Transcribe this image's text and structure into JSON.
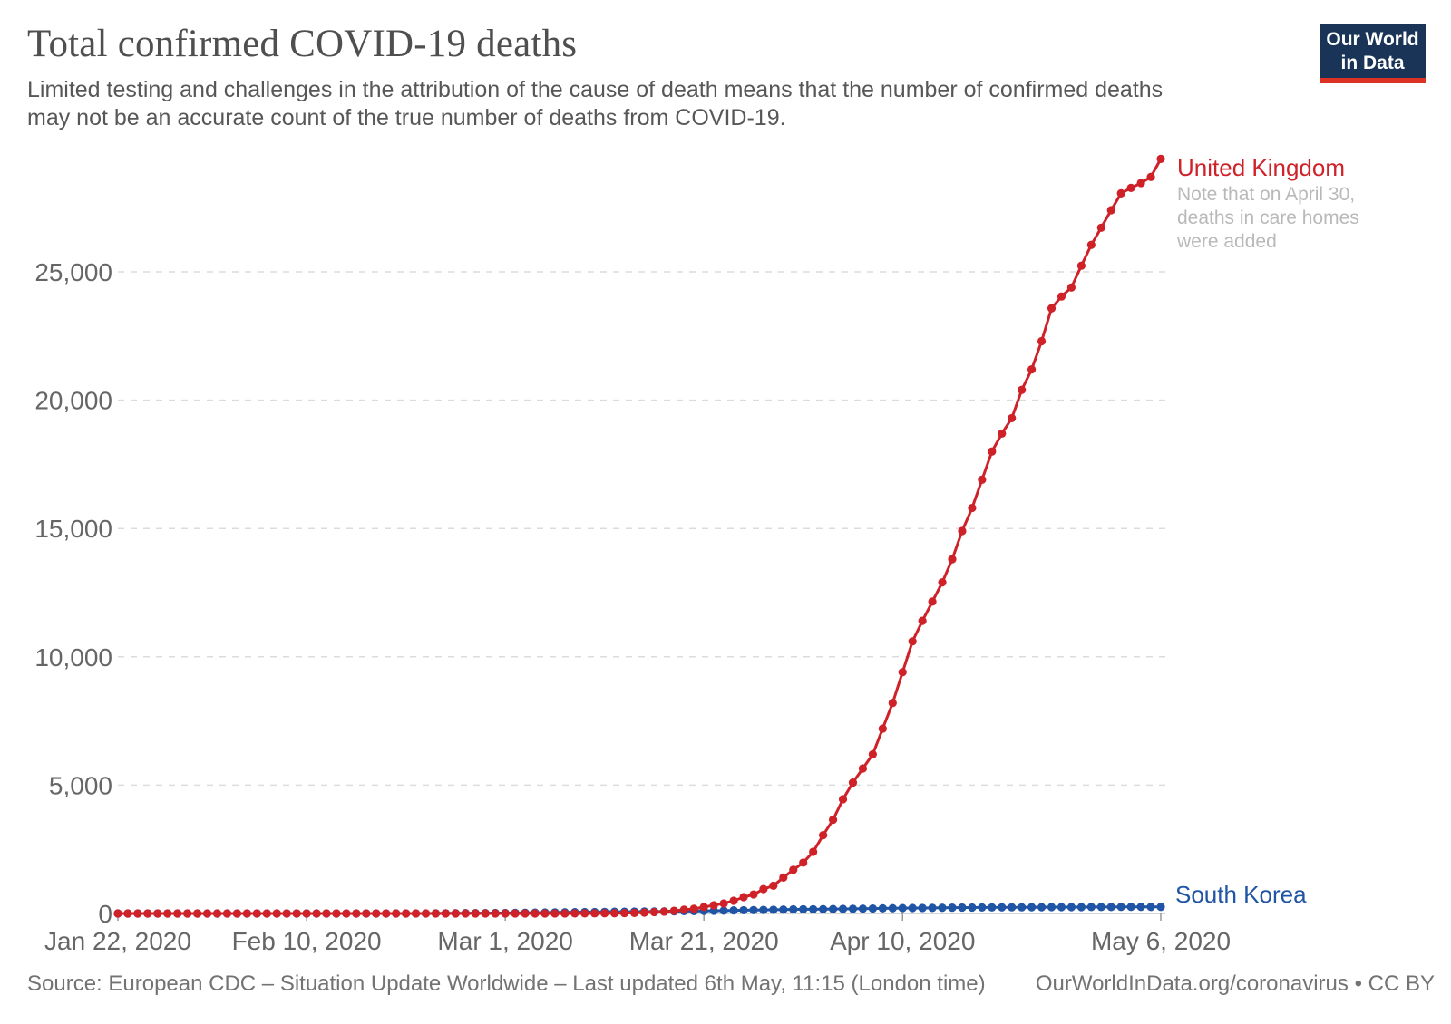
{
  "header": {
    "title": "Total confirmed COVID-19 deaths",
    "subtitle_line1": "Limited testing and challenges in the attribution of the cause of death means that the number of confirmed deaths",
    "subtitle_line2": "may not be an accurate count of the true number of deaths from COVID-19."
  },
  "logo": {
    "line1": "Our World",
    "line2": "in Data"
  },
  "chart_data": {
    "type": "line",
    "title": "Total confirmed COVID-19 deaths",
    "grid": "horizontal dashed gridlines",
    "legend_position": "labels at line ends (right side)",
    "x_axis": {
      "total_days": 105,
      "start_date": "Jan 22, 2020",
      "end_date": "May 6, 2020",
      "tick_labels": [
        "Jan 22, 2020",
        "Feb 10, 2020",
        "Mar 1, 2020",
        "Mar 21, 2020",
        "Apr 10, 2020",
        "May 6, 2020"
      ],
      "tick_days": [
        0,
        19,
        39,
        59,
        79,
        105
      ]
    },
    "y_axis": {
      "tick_values": [
        0,
        5000,
        10000,
        15000,
        20000,
        25000
      ],
      "tick_labels": [
        "0",
        "5,000",
        "10,000",
        "15,000",
        "20,000",
        "25,000"
      ],
      "range": [
        0,
        29500
      ]
    },
    "series": [
      {
        "name": "United Kingdom",
        "color": "#cf2128",
        "annotation_lines": [
          "Note that on April 30,",
          "deaths in care homes",
          "were added"
        ],
        "values": [
          0,
          0,
          0,
          0,
          0,
          0,
          0,
          0,
          0,
          0,
          0,
          0,
          0,
          0,
          0,
          0,
          0,
          0,
          0,
          0,
          0,
          0,
          0,
          0,
          0,
          0,
          0,
          0,
          0,
          0,
          0,
          0,
          0,
          0,
          0,
          0,
          0,
          0,
          0,
          0,
          0,
          0,
          0,
          1,
          2,
          2,
          3,
          4,
          6,
          8,
          10,
          15,
          21,
          35,
          55,
          72,
          104,
          145,
          180,
          250,
          320,
          390,
          495,
          635,
          740,
          950,
          1080,
          1400,
          1700,
          1980,
          2400,
          3050,
          3650,
          4450,
          5100,
          5650,
          6200,
          7200,
          8200,
          9400,
          10600,
          11400,
          12150,
          12900,
          13800,
          14900,
          15800,
          16900,
          18000,
          18700,
          19300,
          20400,
          21200,
          22300,
          23580,
          24040,
          24390,
          25240,
          26050,
          26720,
          27400,
          28060,
          28270,
          28460,
          28700,
          29400
        ]
      },
      {
        "name": "South Korea",
        "color": "#2054a5",
        "annotation_lines": [],
        "values": [
          0,
          0,
          0,
          0,
          0,
          0,
          0,
          0,
          0,
          0,
          0,
          0,
          0,
          0,
          0,
          0,
          0,
          0,
          0,
          0,
          0,
          0,
          0,
          0,
          0,
          0,
          0,
          0,
          0,
          1,
          2,
          2,
          5,
          7,
          8,
          12,
          13,
          13,
          17,
          18,
          22,
          28,
          32,
          35,
          42,
          44,
          50,
          53,
          54,
          60,
          66,
          67,
          72,
          75,
          75,
          81,
          84,
          91,
          94,
          102,
          104,
          111,
          120,
          126,
          131,
          139,
          144,
          152,
          158,
          162,
          165,
          169,
          174,
          177,
          183,
          186,
          192,
          200,
          204,
          208,
          211,
          214,
          217,
          222,
          225,
          229,
          230,
          234,
          236,
          238,
          240,
          240,
          243,
          244,
          246,
          246,
          247,
          248,
          250,
          252,
          252,
          254,
          255,
          255,
          255,
          256
        ]
      }
    ]
  },
  "footer": {
    "source": "Source: European CDC – Situation Update Worldwide – Last updated 6th May, 11:15 (London time)",
    "link": "OurWorldInData.org/coronavirus",
    "separator": "•",
    "license": "CC BY"
  }
}
